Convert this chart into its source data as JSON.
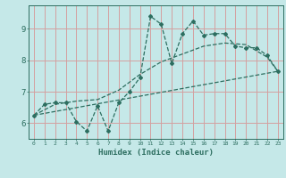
{
  "xlabel": "Humidex (Indice chaleur)",
  "bg_color": "#c5e8e8",
  "line_color": "#2d6e60",
  "grid_color": "#d4a0a0",
  "xlim": [
    -0.5,
    23.5
  ],
  "ylim": [
    5.5,
    9.75
  ],
  "xticks": [
    0,
    1,
    2,
    3,
    4,
    5,
    6,
    7,
    8,
    9,
    10,
    11,
    12,
    13,
    14,
    15,
    16,
    17,
    18,
    19,
    20,
    21,
    22,
    23
  ],
  "yticks": [
    6,
    7,
    8,
    9
  ],
  "main_x": [
    0,
    1,
    2,
    3,
    4,
    5,
    6,
    7,
    8,
    9,
    10,
    11,
    12,
    13,
    14,
    15,
    16,
    17,
    18,
    19,
    20,
    21,
    22,
    23
  ],
  "main_y": [
    6.25,
    6.6,
    6.65,
    6.65,
    6.05,
    5.75,
    6.55,
    5.75,
    6.65,
    7.0,
    7.45,
    9.4,
    9.15,
    7.9,
    8.85,
    9.25,
    8.8,
    8.85,
    8.85,
    8.45,
    8.4,
    8.4,
    8.15,
    7.65
  ],
  "trend_x": [
    0,
    23
  ],
  "trend_y": [
    6.25,
    7.65
  ],
  "smooth_x": [
    0,
    2,
    4,
    6,
    8,
    10,
    12,
    14,
    16,
    18,
    20,
    22,
    23
  ],
  "smooth_y": [
    6.25,
    6.6,
    6.7,
    6.75,
    7.05,
    7.55,
    7.95,
    8.2,
    8.45,
    8.55,
    8.5,
    8.1,
    7.65
  ]
}
